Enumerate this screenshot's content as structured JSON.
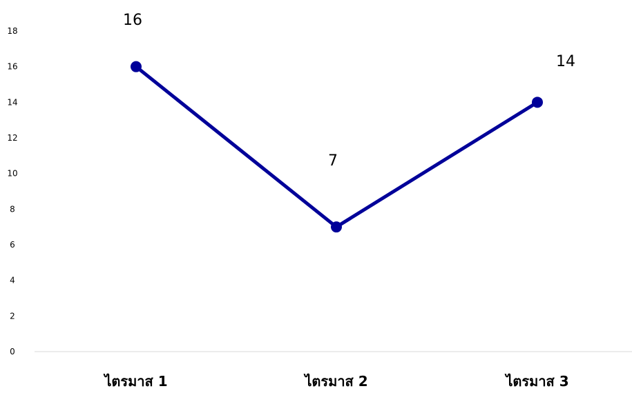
{
  "chart_data": {
    "type": "line",
    "categories": [
      "ไตรมาส 1",
      "ไตรมาส 2",
      "ไตรมาส 3"
    ],
    "series": [
      {
        "values": [
          16,
          7,
          14
        ]
      }
    ],
    "data_labels": [
      "16",
      "7",
      "14"
    ],
    "y_ticks": [
      "0",
      "2",
      "4",
      "6",
      "8",
      "10",
      "12",
      "14",
      "16",
      "18"
    ],
    "ylim": [
      0,
      18
    ],
    "grid": false,
    "legend": "none",
    "colors": {
      "line": "#000099",
      "axis": "#d9d9d9",
      "text": "#000000"
    }
  }
}
